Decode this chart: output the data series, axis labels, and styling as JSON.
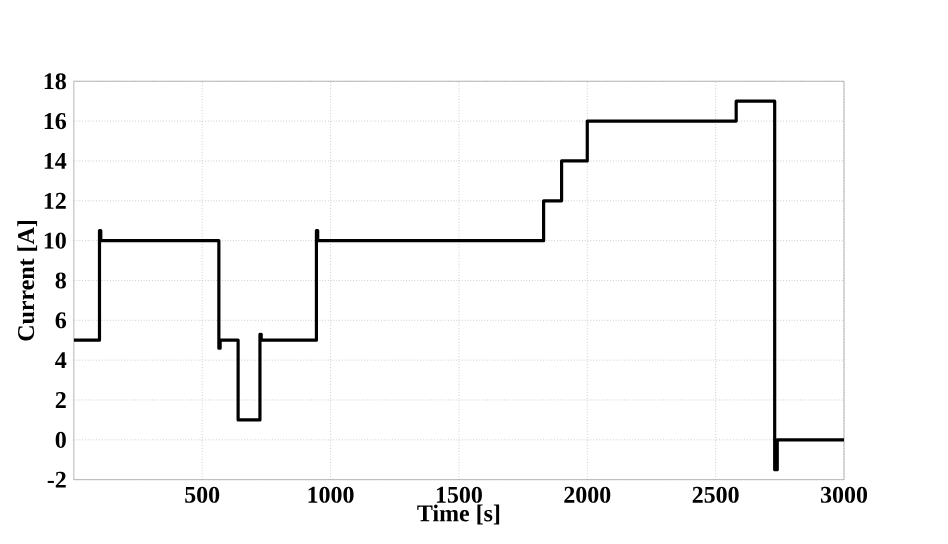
{
  "chart_data": {
    "type": "step",
    "xlabel": "Time [s]",
    "ylabel": "Current [A]",
    "x": [
      0,
      100,
      105,
      565,
      570,
      640,
      725,
      730,
      945,
      950,
      1830,
      1900,
      2000,
      2580,
      2730,
      2740,
      3000
    ],
    "values": [
      5,
      10.5,
      10,
      4.6,
      5,
      1,
      5.3,
      5,
      10.5,
      10,
      12,
      14,
      16,
      17,
      -1.5,
      0,
      0
    ],
    "color": "#000000",
    "xlim": [
      0,
      3000
    ],
    "xticks": [
      500,
      1000,
      1500,
      2000,
      2500,
      3000
    ],
    "ylim": [
      -2,
      18
    ],
    "yticks": [
      -2,
      0,
      2,
      4,
      6,
      8,
      10,
      12,
      14,
      16,
      18
    ],
    "grid": true,
    "line_style": "solid"
  }
}
